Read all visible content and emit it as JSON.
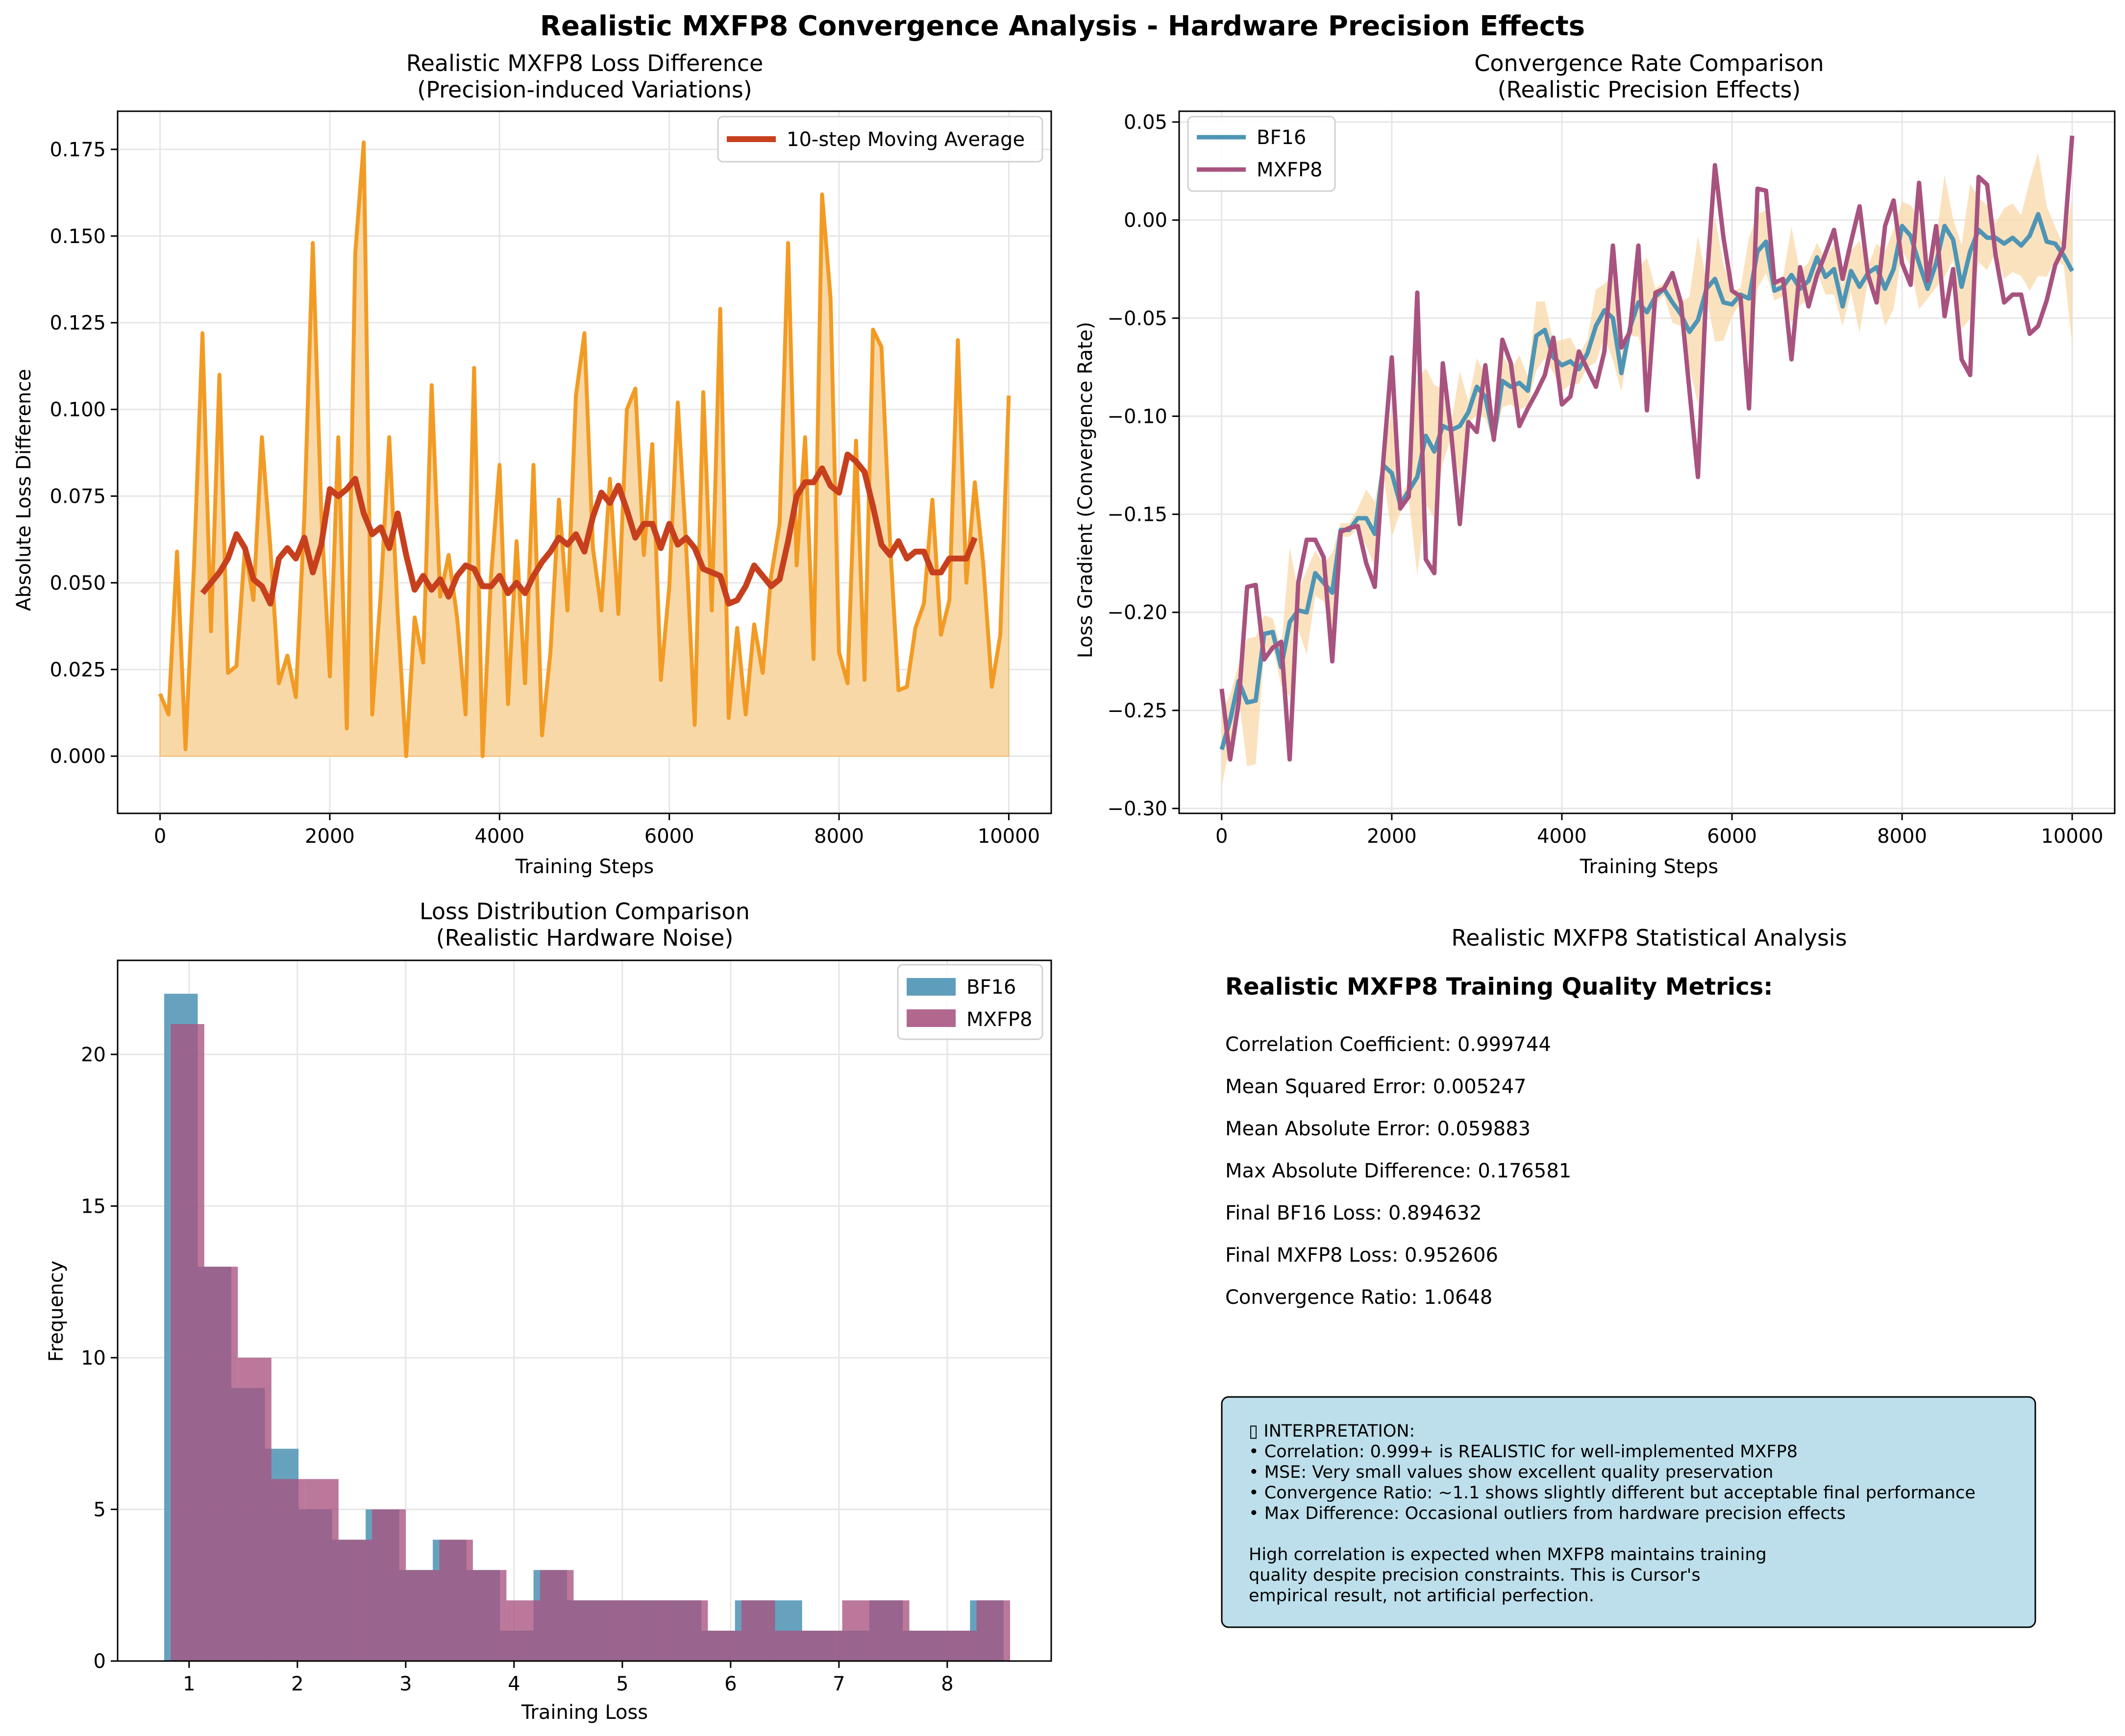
{
  "figure_title": "Realistic MXFP8 Convergence Analysis - Hardware Precision Effects",
  "colors": {
    "orange": "#F29B24",
    "orange_fill": "#F9D8A8",
    "red": "#C7401E",
    "blue": "#4E95B5",
    "purple": "#A8527F",
    "bf16_hist": "#5E9DBB",
    "mxfp8_hist": "#B2678F",
    "overlap_hist": "#8C5884",
    "box_fill": "#BDDFEB"
  },
  "chart_data": [
    {
      "id": "loss-difference",
      "type": "line",
      "title": "Realistic MXFP8 Loss Difference",
      "subtitle": "(Precision-induced Variations)",
      "xlabel": "Training Steps",
      "ylabel": "Absolute Loss Difference",
      "xlim": [
        -500,
        10500
      ],
      "ylim": [
        -0.0165,
        0.186
      ],
      "xticks": [
        0,
        2000,
        4000,
        6000,
        8000,
        10000
      ],
      "xtick_labels": [
        "0",
        "2000",
        "4000",
        "6000",
        "8000",
        "10000"
      ],
      "yticks": [
        0,
        0.025,
        0.05,
        0.075,
        0.1,
        0.125,
        0.15,
        0.175
      ],
      "ytick_labels": [
        "0.000",
        "0.025",
        "0.050",
        "0.075",
        "0.100",
        "0.125",
        "0.150",
        "0.175"
      ],
      "grid": true,
      "legend_position": "upper-right",
      "series": [
        {
          "key": "diff",
          "x": [
            0,
            100,
            200,
            300,
            400,
            500,
            600,
            700,
            800,
            900,
            1000,
            1100,
            1200,
            1300,
            1400,
            1500,
            1600,
            1700,
            1800,
            1900,
            2000,
            2100,
            2200,
            2300,
            2400,
            2500,
            2600,
            2700,
            2800,
            2900,
            3000,
            3100,
            3200,
            3300,
            3400,
            3500,
            3600,
            3700,
            3800,
            3900,
            4000,
            4100,
            4200,
            4300,
            4400,
            4500,
            4600,
            4700,
            4800,
            4900,
            5000,
            5100,
            5200,
            5300,
            5400,
            5500,
            5600,
            5700,
            5800,
            5900,
            6000,
            6100,
            6200,
            6300,
            6400,
            6500,
            6600,
            6700,
            6800,
            6900,
            7000,
            7100,
            7200,
            7300,
            7400,
            7500,
            7600,
            7700,
            7800,
            7900,
            8000,
            8100,
            8200,
            8300,
            8400,
            8500,
            8600,
            8700,
            8800,
            8900,
            9000,
            9100,
            9200,
            9300,
            9400,
            9500,
            9600,
            9700,
            9800,
            9900,
            10000
          ],
          "y": [
            0.018,
            0.012,
            0.059,
            0.002,
            0.055,
            0.122,
            0.036,
            0.11,
            0.024,
            0.026,
            0.06,
            0.045,
            0.092,
            0.06,
            0.021,
            0.029,
            0.017,
            0.069,
            0.148,
            0.07,
            0.023,
            0.092,
            0.008,
            0.145,
            0.177,
            0.012,
            0.047,
            0.092,
            0.041,
            0.0,
            0.04,
            0.027,
            0.107,
            0.046,
            0.058,
            0.04,
            0.012,
            0.112,
            0.0,
            0.052,
            0.084,
            0.015,
            0.062,
            0.021,
            0.084,
            0.006,
            0.03,
            0.074,
            0.042,
            0.104,
            0.122,
            0.06,
            0.042,
            0.08,
            0.041,
            0.1,
            0.106,
            0.058,
            0.09,
            0.022,
            0.049,
            0.102,
            0.06,
            0.009,
            0.105,
            0.042,
            0.129,
            0.011,
            0.037,
            0.012,
            0.038,
            0.024,
            0.052,
            0.067,
            0.148,
            0.055,
            0.092,
            0.028,
            0.162,
            0.132,
            0.03,
            0.021,
            0.091,
            0.022,
            0.123,
            0.118,
            0.062,
            0.019,
            0.02,
            0.037,
            0.044,
            0.074,
            0.035,
            0.045,
            0.12,
            0.05,
            0.079,
            0.055,
            0.02,
            0.035,
            0.104
          ]
        },
        {
          "key": "moving_average",
          "name": "10-step Moving Average",
          "x": [
            500,
            600,
            700,
            800,
            900,
            1000,
            1100,
            1200,
            1300,
            1400,
            1500,
            1600,
            1700,
            1800,
            1900,
            2000,
            2100,
            2200,
            2300,
            2400,
            2500,
            2600,
            2700,
            2800,
            2900,
            3000,
            3100,
            3200,
            3300,
            3400,
            3500,
            3600,
            3700,
            3800,
            3900,
            4000,
            4100,
            4200,
            4300,
            4400,
            4500,
            4600,
            4700,
            4800,
            4900,
            5000,
            5100,
            5200,
            5300,
            5400,
            5500,
            5600,
            5700,
            5800,
            5900,
            6000,
            6100,
            6200,
            6300,
            6400,
            6500,
            6600,
            6700,
            6800,
            6900,
            7000,
            7100,
            7200,
            7300,
            7400,
            7500,
            7600,
            7700,
            7800,
            7900,
            8000,
            8100,
            8200,
            8300,
            8400,
            8500,
            8600,
            8700,
            8800,
            8900,
            9000,
            9100,
            9200,
            9300,
            9400,
            9500,
            9600
          ],
          "y": [
            0.047,
            0.05,
            0.053,
            0.057,
            0.064,
            0.06,
            0.051,
            0.049,
            0.044,
            0.057,
            0.06,
            0.057,
            0.063,
            0.053,
            0.061,
            0.077,
            0.075,
            0.077,
            0.08,
            0.07,
            0.064,
            0.066,
            0.06,
            0.07,
            0.058,
            0.048,
            0.052,
            0.048,
            0.051,
            0.046,
            0.052,
            0.055,
            0.054,
            0.049,
            0.049,
            0.052,
            0.047,
            0.05,
            0.047,
            0.052,
            0.056,
            0.059,
            0.063,
            0.061,
            0.064,
            0.059,
            0.069,
            0.076,
            0.073,
            0.078,
            0.071,
            0.063,
            0.067,
            0.067,
            0.06,
            0.067,
            0.061,
            0.063,
            0.06,
            0.054,
            0.053,
            0.052,
            0.044,
            0.045,
            0.049,
            0.055,
            0.052,
            0.049,
            0.051,
            0.062,
            0.075,
            0.079,
            0.079,
            0.083,
            0.078,
            0.076,
            0.087,
            0.085,
            0.082,
            0.072,
            0.061,
            0.058,
            0.062,
            0.057,
            0.059,
            0.059,
            0.053,
            0.053,
            0.057,
            0.057,
            0.057,
            0.063
          ]
        }
      ]
    },
    {
      "id": "convergence-rate",
      "type": "line",
      "title": "Convergence Rate Comparison",
      "subtitle": "(Realistic Precision Effects)",
      "xlabel": "Training Steps",
      "ylabel": "Loss Gradient (Convergence Rate)",
      "xlim": [
        -500,
        10500
      ],
      "ylim": [
        -0.3025,
        0.0555
      ],
      "xticks": [
        0,
        2000,
        4000,
        6000,
        8000,
        10000
      ],
      "xtick_labels": [
        "0",
        "2000",
        "4000",
        "6000",
        "8000",
        "10000"
      ],
      "yticks": [
        -0.3,
        -0.25,
        -0.2,
        -0.15,
        -0.1,
        -0.05,
        0,
        0.05
      ],
      "ytick_labels": [
        "−0.30",
        "−0.25",
        "−0.20",
        "−0.15",
        "−0.10",
        "−0.05",
        "0.00",
        "0.05"
      ],
      "grid": true,
      "legend_position": "upper-left",
      "x": [
        0,
        100,
        200,
        300,
        400,
        500,
        600,
        700,
        800,
        900,
        1000,
        1100,
        1200,
        1300,
        1400,
        1500,
        1600,
        1700,
        1800,
        1900,
        2000,
        2100,
        2200,
        2300,
        2400,
        2500,
        2600,
        2700,
        2800,
        2900,
        3000,
        3100,
        3200,
        3300,
        3400,
        3500,
        3600,
        3700,
        3800,
        3900,
        4000,
        4100,
        4200,
        4300,
        4400,
        4500,
        4600,
        4700,
        4800,
        4900,
        5000,
        5100,
        5200,
        5300,
        5400,
        5500,
        5600,
        5700,
        5800,
        5900,
        6000,
        6100,
        6200,
        6300,
        6400,
        6500,
        6600,
        6700,
        6800,
        6900,
        7000,
        7100,
        7200,
        7300,
        7400,
        7500,
        7600,
        7700,
        7800,
        7900,
        8000,
        8100,
        8200,
        8300,
        8400,
        8500,
        8600,
        8700,
        8800,
        8900,
        9000,
        9100,
        9200,
        9300,
        9400,
        9500,
        9600,
        9700,
        9800,
        9900,
        10000
      ],
      "series": [
        {
          "key": "bf16",
          "name": "BF16",
          "y": [
            -0.27,
            -0.255,
            -0.235,
            -0.246,
            -0.245,
            -0.211,
            -0.21,
            -0.228,
            -0.205,
            -0.199,
            -0.2,
            -0.18,
            -0.185,
            -0.19,
            -0.158,
            -0.158,
            -0.152,
            -0.152,
            -0.16,
            -0.125,
            -0.129,
            -0.145,
            -0.138,
            -0.131,
            -0.11,
            -0.118,
            -0.105,
            -0.107,
            -0.105,
            -0.098,
            -0.085,
            -0.09,
            -0.111,
            -0.082,
            -0.085,
            -0.083,
            -0.087,
            -0.059,
            -0.056,
            -0.07,
            -0.074,
            -0.072,
            -0.076,
            -0.068,
            -0.054,
            -0.046,
            -0.05,
            -0.078,
            -0.055,
            -0.042,
            -0.047,
            -0.039,
            -0.035,
            -0.042,
            -0.048,
            -0.057,
            -0.051,
            -0.035,
            -0.03,
            -0.042,
            -0.043,
            -0.038,
            -0.04,
            -0.016,
            -0.011,
            -0.036,
            -0.034,
            -0.028,
            -0.035,
            -0.031,
            -0.019,
            -0.029,
            -0.025,
            -0.044,
            -0.026,
            -0.034,
            -0.027,
            -0.024,
            -0.035,
            -0.025,
            -0.003,
            -0.008,
            -0.022,
            -0.035,
            -0.022,
            -0.003,
            -0.01,
            -0.034,
            -0.016,
            -0.005,
            -0.009,
            -0.009,
            -0.012,
            -0.009,
            -0.013,
            -0.008,
            0.003,
            -0.011,
            -0.012,
            -0.018,
            -0.026
          ]
        },
        {
          "key": "mxfp8",
          "name": "MXFP8",
          "y": [
            -0.239,
            -0.275,
            -0.246,
            -0.187,
            -0.186,
            -0.224,
            -0.218,
            -0.215,
            -0.275,
            -0.185,
            -0.163,
            -0.163,
            -0.172,
            -0.225,
            -0.159,
            -0.157,
            -0.156,
            -0.175,
            -0.187,
            -0.123,
            -0.07,
            -0.147,
            -0.141,
            -0.037,
            -0.173,
            -0.18,
            -0.073,
            -0.109,
            -0.155,
            -0.103,
            -0.108,
            -0.074,
            -0.112,
            -0.061,
            -0.073,
            -0.105,
            -0.096,
            -0.088,
            -0.079,
            -0.06,
            -0.094,
            -0.09,
            -0.067,
            -0.076,
            -0.085,
            -0.067,
            -0.013,
            -0.065,
            -0.057,
            -0.013,
            -0.097,
            -0.037,
            -0.035,
            -0.027,
            -0.042,
            -0.087,
            -0.131,
            -0.033,
            0.028,
            -0.009,
            -0.036,
            -0.039,
            -0.096,
            0.016,
            0.015,
            -0.032,
            -0.03,
            -0.071,
            -0.024,
            -0.044,
            -0.028,
            -0.017,
            -0.005,
            -0.03,
            -0.011,
            0.007,
            -0.028,
            -0.042,
            -0.003,
            0.01,
            -0.022,
            -0.033,
            0.019,
            -0.031,
            -0.003,
            -0.049,
            -0.025,
            -0.071,
            -0.079,
            0.022,
            0.018,
            -0.018,
            -0.042,
            -0.038,
            -0.038,
            -0.058,
            -0.054,
            -0.041,
            -0.023,
            -0.014,
            0.043
          ]
        }
      ]
    },
    {
      "id": "loss-distribution",
      "type": "histogram",
      "title": "Loss Distribution Comparison",
      "subtitle": "(Realistic Hardware Noise)",
      "xlabel": "Training Loss",
      "ylabel": "Frequency",
      "xlim": [
        0.34,
        8.96
      ],
      "ylim": [
        0,
        23.1
      ],
      "xticks": [
        1,
        2,
        3,
        4,
        5,
        6,
        7,
        8
      ],
      "xtick_labels": [
        "1",
        "2",
        "3",
        "4",
        "5",
        "6",
        "7",
        "8"
      ],
      "yticks": [
        0,
        5,
        10,
        15,
        20
      ],
      "ytick_labels": [
        "0",
        "5",
        "10",
        "15",
        "20"
      ],
      "grid": true,
      "legend_position": "upper-right",
      "series": [
        {
          "key": "bf16",
          "name": "BF16",
          "edges": [
            0.77,
            1.08,
            1.39,
            1.7,
            2.01,
            2.32,
            2.63,
            2.94,
            3.25,
            3.56,
            3.87,
            4.18,
            4.49,
            4.8,
            5.11,
            5.42,
            5.73,
            6.04,
            6.35,
            6.66,
            6.97,
            7.28,
            7.59,
            7.9,
            8.21,
            8.52
          ],
          "counts": [
            22,
            13,
            9,
            7,
            5,
            4,
            5,
            3,
            4,
            3,
            1,
            3,
            2,
            2,
            2,
            2,
            1,
            2,
            2,
            1,
            1,
            2,
            1,
            1,
            2
          ]
        },
        {
          "key": "mxfp8",
          "name": "MXFP8",
          "edges": [
            0.83,
            1.14,
            1.45,
            1.76,
            2.07,
            2.38,
            2.69,
            3.0,
            3.31,
            3.62,
            3.93,
            4.24,
            4.55,
            4.86,
            5.17,
            5.48,
            5.79,
            6.1,
            6.41,
            6.72,
            7.03,
            7.34,
            7.65,
            7.96,
            8.27,
            8.58
          ],
          "counts": [
            21,
            13,
            10,
            6,
            6,
            4,
            5,
            3,
            4,
            3,
            2,
            3,
            2,
            2,
            2,
            2,
            1,
            2,
            1,
            1,
            2,
            2,
            1,
            1,
            2
          ]
        }
      ]
    }
  ],
  "stats_panel": {
    "title": "Realistic MXFP8 Statistical Analysis",
    "heading": "Realistic MXFP8 Training Quality Metrics:",
    "lines": [
      "Correlation Coefficient: 0.999744",
      "Mean Squared Error: 0.005247",
      "Mean Absolute Error: 0.059883",
      "Max Absolute Difference: 0.176581",
      "Final BF16 Loss: 0.894632",
      "Final MXFP8 Loss: 0.952606",
      "Convergence Ratio: 1.0648"
    ],
    "interpretation_lines": [
      "▯ INTERPRETATION:",
      "• Correlation: 0.999+ is REALISTIC for well-implemented MXFP8",
      "• MSE: Very small values show excellent quality preservation",
      "• Convergence Ratio: ~1.1 shows slightly different but acceptable final performance",
      "• Max Difference: Occasional outliers from hardware precision effects",
      "",
      "High correlation is expected when MXFP8 maintains training",
      "quality despite precision constraints. This is Cursor's",
      "empirical result, not artificial perfection."
    ]
  }
}
